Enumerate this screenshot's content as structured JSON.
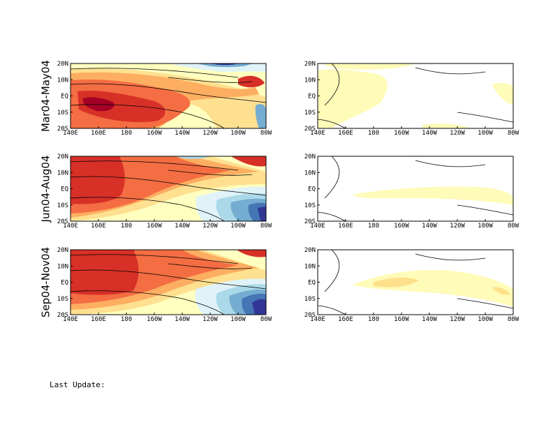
{
  "chart_data": {
    "type": "heatmap",
    "x_tick_labels": [
      "140E",
      "160E",
      "180",
      "160W",
      "140W",
      "120W",
      "100W",
      "80W"
    ],
    "y_tick_labels": [
      "20N",
      "10N",
      "EQ",
      "10S",
      "20S"
    ],
    "rows": [
      {
        "period": "Mar04-May04"
      },
      {
        "period": "Jun04-Aug04"
      },
      {
        "period": "Sep04-Nov04"
      }
    ]
  },
  "footer": {
    "last_update": "Last Update:"
  }
}
